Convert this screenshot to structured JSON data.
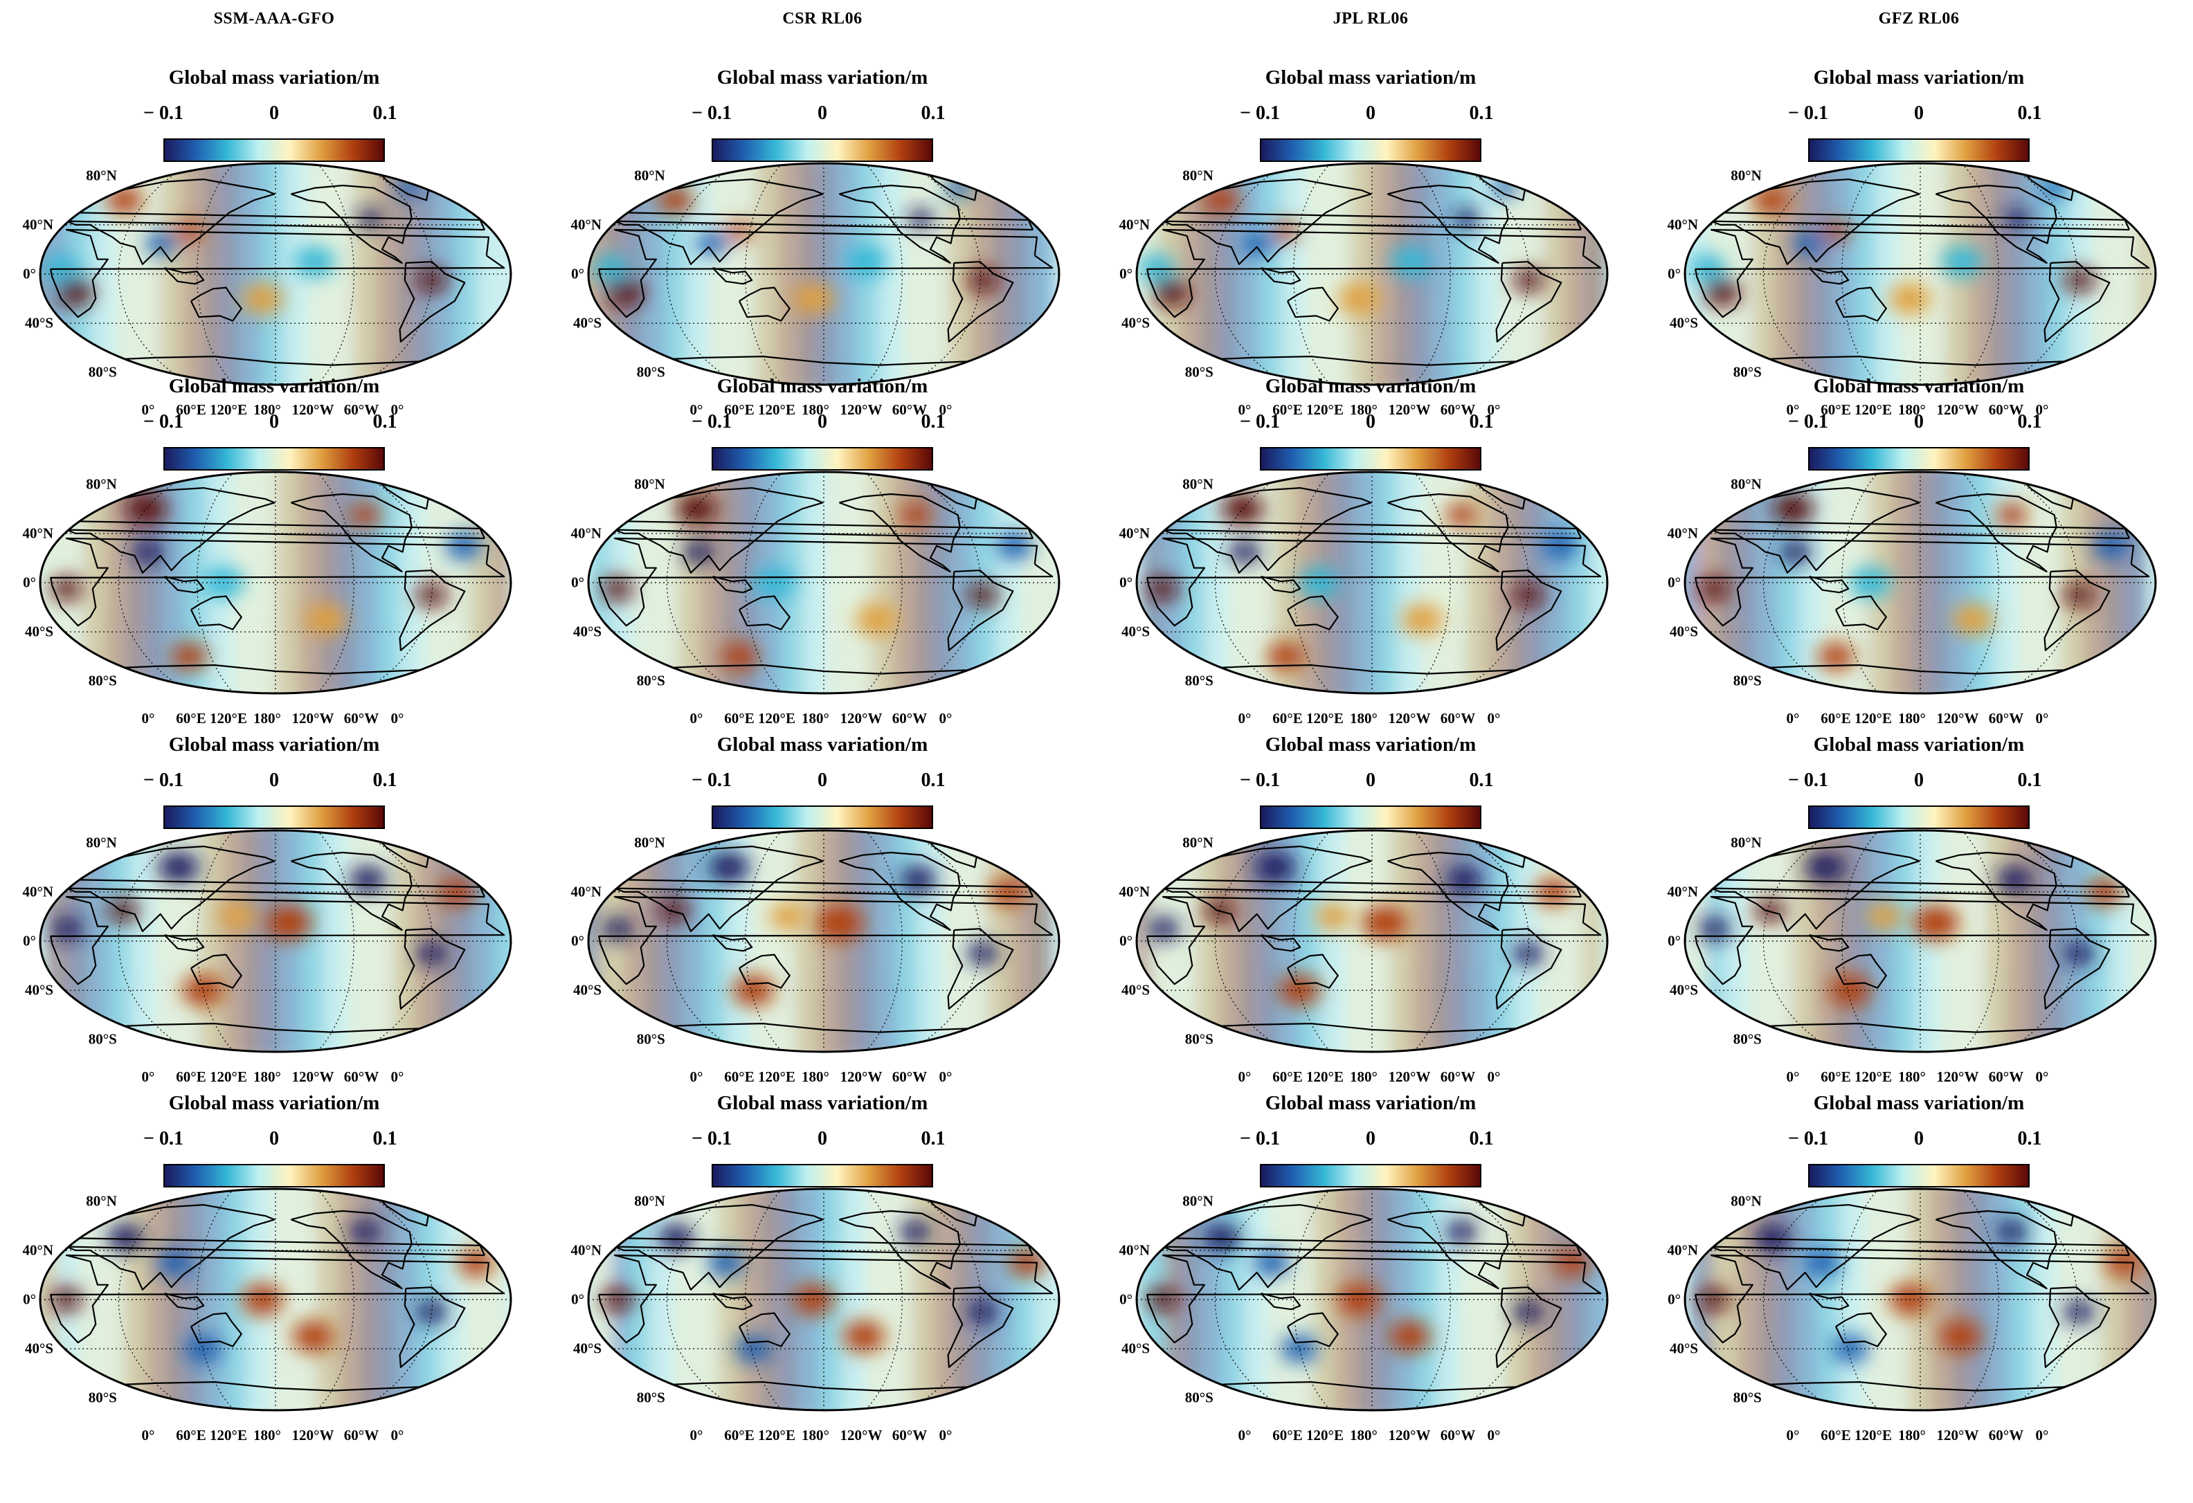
{
  "column_headers": [
    "SSM-AAA-GFO",
    "CSR RL06",
    "JPL RL06",
    "GFZ RL06"
  ],
  "panel_title": "Global mass variation/m",
  "colorbar": {
    "labels": [
      "− 0.1",
      "0",
      "0.1"
    ],
    "min": -0.1,
    "max": 0.1,
    "colors": [
      "#1a1a5e",
      "#1f5fb0",
      "#35b7d6",
      "#bff0f0",
      "#fff3c0",
      "#e0a040",
      "#b04010",
      "#5a0808"
    ]
  },
  "lat_labels": [
    "80°N",
    "40°N",
    "0°",
    "40°S",
    "80°S"
  ],
  "lon_labels": [
    "0°",
    "60°E",
    "120°E",
    "180°",
    "120°W",
    "60°W",
    "0°"
  ],
  "rows": 4,
  "map_style": {
    "ocean_base": "#cfeff0",
    "land_outline": "#000000",
    "graticule": "#000000"
  },
  "blobs": [
    [
      {
        "lon": 15,
        "lat": 5,
        "v": -0.04,
        "r": 0.07
      },
      {
        "lon": 25,
        "lat": -15,
        "v": 0.09,
        "r": 0.07
      },
      {
        "lon": 90,
        "lat": 25,
        "v": -0.08,
        "r": 0.06
      },
      {
        "lon": 110,
        "lat": 35,
        "v": 0.06,
        "r": 0.05
      },
      {
        "lon": -60,
        "lat": -5,
        "v": 0.1,
        "r": 0.06
      },
      {
        "lon": -100,
        "lat": 45,
        "v": -0.09,
        "r": 0.05
      },
      {
        "lon": 40,
        "lat": 60,
        "v": 0.07,
        "r": 0.07
      },
      {
        "lon": -45,
        "lat": 70,
        "v": -0.08,
        "r": 0.05
      },
      {
        "lon": 170,
        "lat": -20,
        "v": 0.03,
        "r": 0.08
      },
      {
        "lon": -150,
        "lat": 10,
        "v": -0.04,
        "r": 0.08
      }
    ],
    [
      {
        "lon": 20,
        "lat": -5,
        "v": 0.1,
        "r": 0.06
      },
      {
        "lon": 80,
        "lat": 25,
        "v": -0.09,
        "r": 0.06
      },
      {
        "lon": -60,
        "lat": -10,
        "v": 0.1,
        "r": 0.06
      },
      {
        "lon": 60,
        "lat": 60,
        "v": 0.09,
        "r": 0.08
      },
      {
        "lon": -100,
        "lat": 55,
        "v": 0.08,
        "r": 0.06
      },
      {
        "lon": 140,
        "lat": 0,
        "v": -0.04,
        "r": 0.08
      },
      {
        "lon": -140,
        "lat": -30,
        "v": 0.05,
        "r": 0.08
      },
      {
        "lon": -30,
        "lat": 30,
        "v": -0.06,
        "r": 0.07
      },
      {
        "lon": 100,
        "lat": -60,
        "v": 0.06,
        "r": 0.07
      }
    ],
    [
      {
        "lon": 20,
        "lat": 10,
        "v": -0.09,
        "r": 0.06
      },
      {
        "lon": 60,
        "lat": 25,
        "v": 0.1,
        "r": 0.06
      },
      {
        "lon": 90,
        "lat": 60,
        "v": -0.1,
        "r": 0.08
      },
      {
        "lon": -100,
        "lat": 50,
        "v": -0.1,
        "r": 0.07
      },
      {
        "lon": -60,
        "lat": -10,
        "v": -0.1,
        "r": 0.06
      },
      {
        "lon": -170,
        "lat": 15,
        "v": 0.06,
        "r": 0.09
      },
      {
        "lon": 120,
        "lat": -40,
        "v": 0.07,
        "r": 0.08
      },
      {
        "lon": -30,
        "lat": 40,
        "v": 0.07,
        "r": 0.07
      },
      {
        "lon": 150,
        "lat": 20,
        "v": 0.05,
        "r": 0.07
      }
    ],
    [
      {
        "lon": 20,
        "lat": 0,
        "v": 0.1,
        "r": 0.06
      },
      {
        "lon": 50,
        "lat": 50,
        "v": -0.1,
        "r": 0.07
      },
      {
        "lon": 100,
        "lat": 30,
        "v": -0.08,
        "r": 0.07
      },
      {
        "lon": -60,
        "lat": -10,
        "v": -0.1,
        "r": 0.06
      },
      {
        "lon": -100,
        "lat": 55,
        "v": -0.1,
        "r": 0.06
      },
      {
        "lon": 170,
        "lat": 0,
        "v": 0.08,
        "r": 0.08
      },
      {
        "lon": -150,
        "lat": -30,
        "v": 0.07,
        "r": 0.08
      },
      {
        "lon": -20,
        "lat": 30,
        "v": 0.08,
        "r": 0.07
      },
      {
        "lon": 120,
        "lat": -40,
        "v": -0.06,
        "r": 0.07
      }
    ]
  ]
}
